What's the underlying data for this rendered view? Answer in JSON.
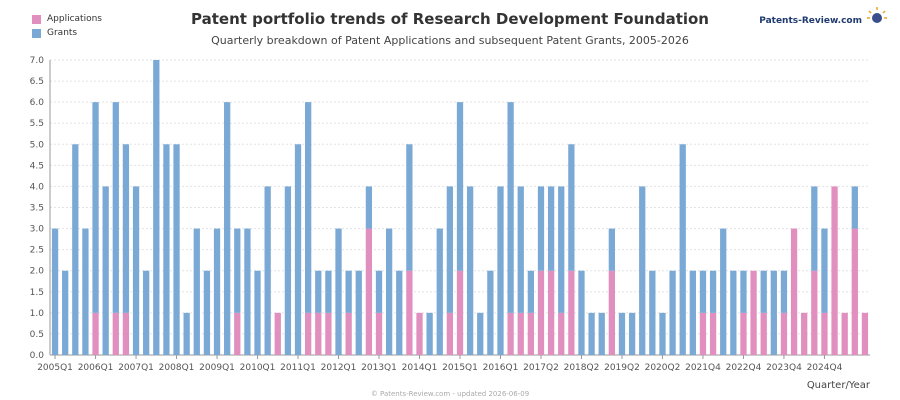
{
  "chart_data": {
    "type": "bar",
    "stacked": true,
    "title": "Patent portfolio trends of Research Development Foundation",
    "subtitle": "Quarterly breakdown of Patent Applications and subsequent Patent Grants, 2005-2026",
    "xlabel": "Quarter/Year",
    "ylabel": "",
    "ylim": [
      0,
      7
    ],
    "yticks": [
      "0.0",
      "0.5",
      "1.0",
      "1.5",
      "2.0",
      "2.5",
      "3.0",
      "3.5",
      "4.0",
      "4.5",
      "5.0",
      "5.5",
      "6.0",
      "6.5",
      "7.0"
    ],
    "xtick_labels": [
      "2005Q1",
      "2006Q1",
      "2007Q1",
      "2008Q1",
      "2009Q1",
      "2010Q1",
      "2011Q1",
      "2012Q1",
      "2013Q1",
      "2014Q1",
      "2015Q1",
      "2016Q1",
      "2017Q2",
      "2018Q2",
      "2019Q2",
      "2020Q2",
      "2021Q4",
      "2022Q4",
      "2023Q4",
      "2024Q4"
    ],
    "xtick_indices": [
      0,
      4,
      8,
      12,
      16,
      20,
      24,
      28,
      32,
      36,
      40,
      44,
      48,
      52,
      56,
      60,
      64,
      68,
      72,
      76
    ],
    "legend_position": "top-left",
    "grid": true,
    "series": [
      {
        "name": "Applications",
        "color": "#e08fbf",
        "values": [
          0,
          0,
          0,
          0,
          1,
          0,
          1,
          1,
          0,
          0,
          0,
          0,
          0,
          0,
          0,
          0,
          0,
          0,
          1,
          0,
          0,
          0,
          1,
          0,
          0,
          1,
          1,
          1,
          0,
          1,
          0,
          3,
          1,
          0,
          0,
          2,
          1,
          0,
          0,
          1,
          2,
          0,
          0,
          0,
          0,
          1,
          1,
          1,
          2,
          2,
          1,
          2,
          0,
          0,
          0,
          2,
          0,
          0,
          0,
          0,
          0,
          0,
          0,
          0,
          1,
          1,
          0,
          0,
          1,
          2,
          1,
          0,
          1,
          3,
          1,
          2,
          1,
          4,
          1,
          3,
          1
        ]
      },
      {
        "name": "Grants",
        "color": "#7aa9d6",
        "values": [
          3,
          2,
          5,
          3,
          5,
          4,
          5,
          4,
          4,
          2,
          7,
          5,
          5,
          1,
          3,
          2,
          3,
          6,
          2,
          3,
          2,
          4,
          0,
          4,
          5,
          5,
          1,
          1,
          3,
          1,
          2,
          1,
          1,
          3,
          2,
          3,
          0,
          1,
          3,
          3,
          4,
          4,
          1,
          2,
          4,
          5,
          3,
          1,
          2,
          2,
          3,
          3,
          2,
          1,
          1,
          1,
          1,
          1,
          4,
          2,
          1,
          2,
          5,
          2,
          1,
          1,
          3,
          2,
          1,
          0,
          1,
          2,
          1,
          0,
          0,
          2,
          2,
          0,
          0,
          1,
          0,
          0
        ]
      }
    ]
  },
  "brand": {
    "name": "Patents-Review.com"
  },
  "footer": "© Patents-Review.com - updated 2026-06-09"
}
